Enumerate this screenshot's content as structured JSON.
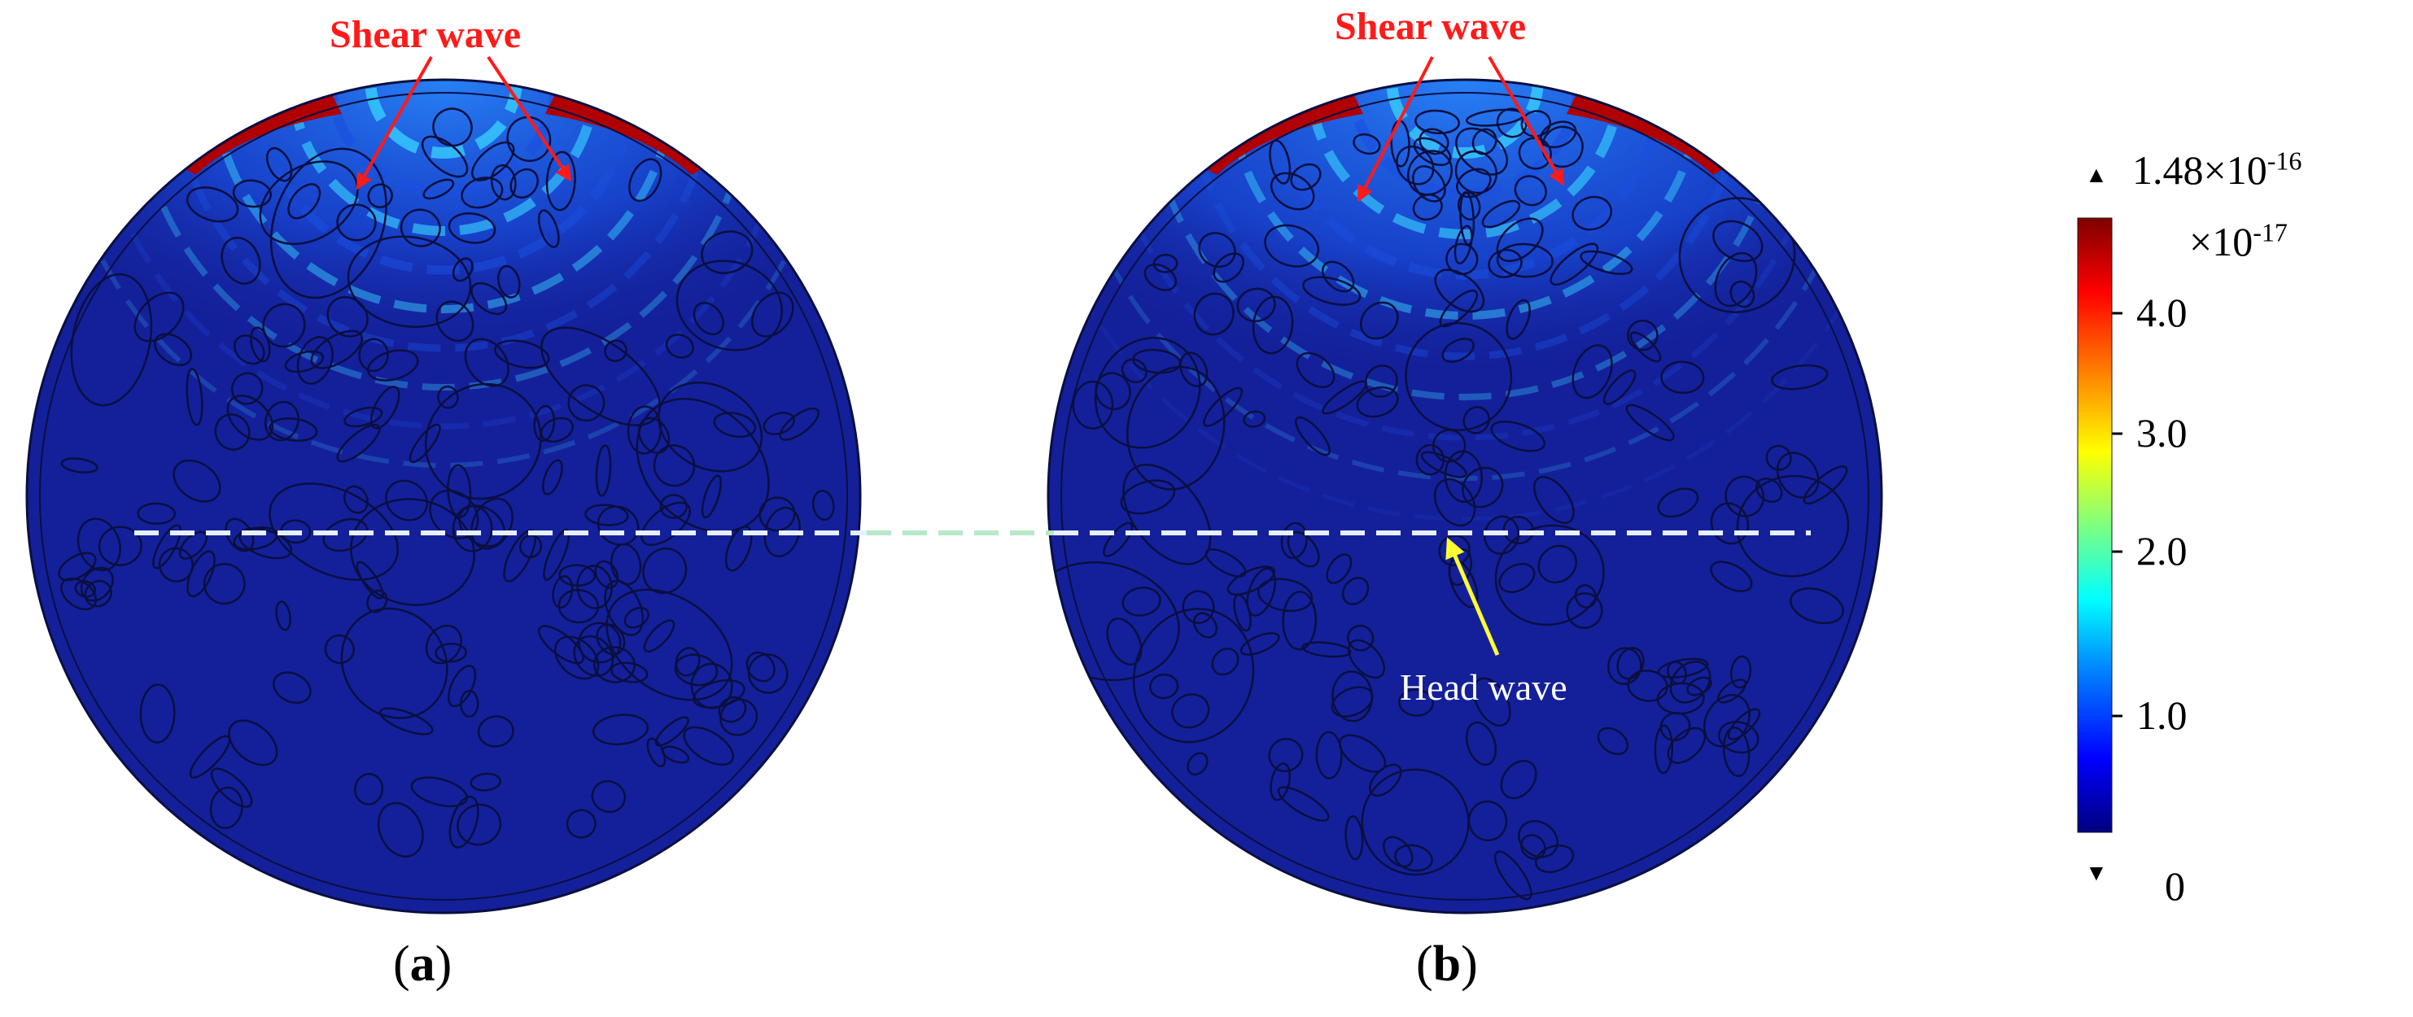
{
  "panels": [
    {
      "id": "a",
      "label_open": "(",
      "label_letter": "a",
      "label_close": ")",
      "annotation": "Shear wave"
    },
    {
      "id": "b",
      "label_open": "(",
      "label_letter": "b",
      "label_close": ")",
      "annotation": "Shear wave",
      "secondary_annotation": "Head wave"
    }
  ],
  "colorbar": {
    "max_mantissa": "1.48×10",
    "max_exponent": "-16",
    "multiplier_prefix": "×10",
    "multiplier_exponent": "-17",
    "ticks": [
      "4.0",
      "3.0",
      "2.0",
      "1.0"
    ],
    "min_label": "0",
    "max_marker": "▲",
    "min_marker": "▼",
    "colormap": [
      "#00007f",
      "#0000ff",
      "#007fff",
      "#00ffff",
      "#7fff7f",
      "#ffff00",
      "#ff7f00",
      "#ff0000",
      "#7f0000"
    ]
  },
  "colors": {
    "annotation_red": "#ff1a1a",
    "head_wave_arrow": "#ffff33",
    "dashed_line": "#e6f0ff",
    "dashed_line_outside": "#b8e8c8",
    "field_background": "#14209a"
  }
}
